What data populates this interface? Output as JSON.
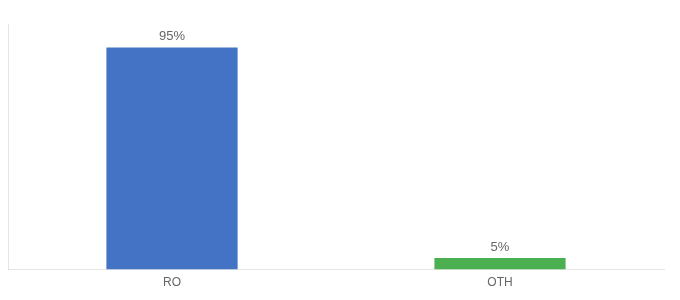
{
  "chart_data": {
    "type": "bar",
    "categories": [
      "RO",
      "OTH"
    ],
    "values": [
      95,
      5
    ],
    "value_labels": [
      "95%",
      "5%"
    ],
    "colors": [
      "#4472c4",
      "#4caf50"
    ],
    "ylim": [
      0,
      105
    ],
    "grid": false,
    "tick_labels": "x",
    "data_labels": true
  }
}
